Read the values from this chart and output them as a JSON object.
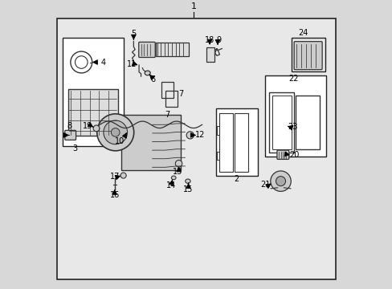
{
  "bg_color": "#d8d8d8",
  "inner_bg": "#e8e8e8",
  "border_color": "#222222",
  "line_color": "#333333",
  "part_color": "#555555",
  "figsize": [
    4.89,
    3.6
  ],
  "dpi": 100
}
